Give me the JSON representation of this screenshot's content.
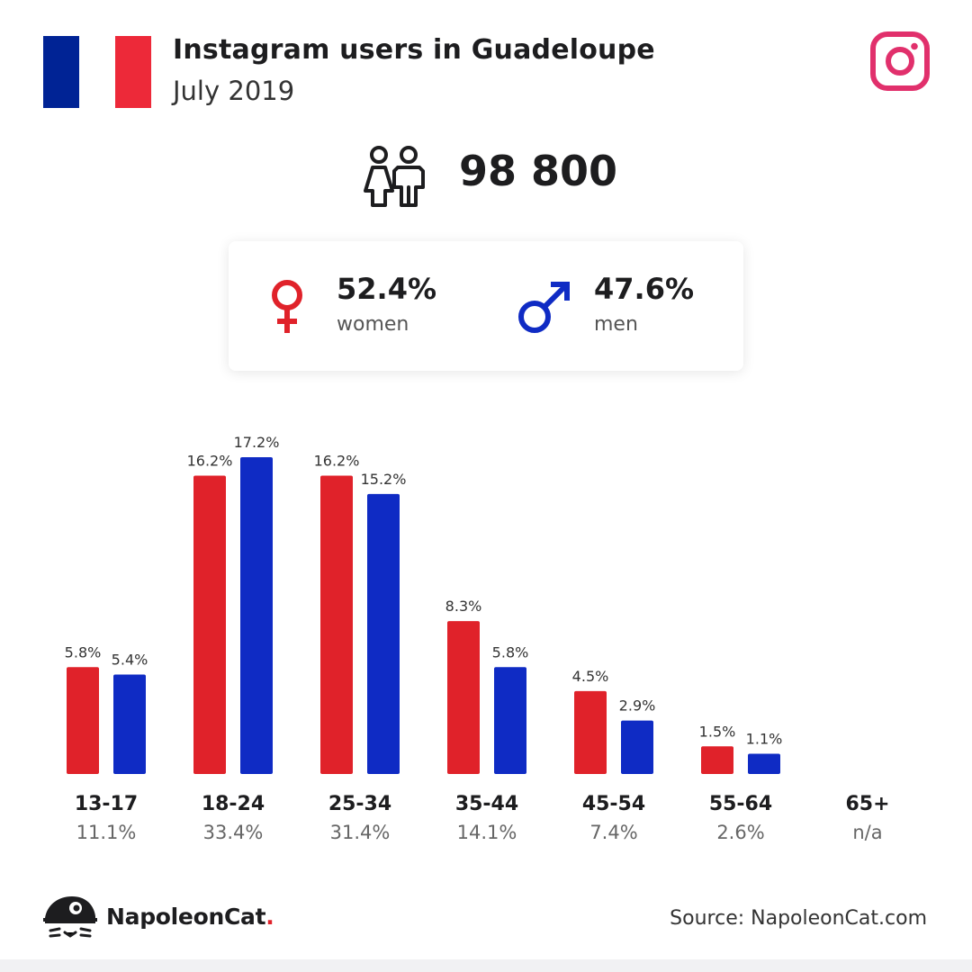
{
  "header": {
    "title": "Instagram users in Guadeloupe",
    "subtitle": "July 2019"
  },
  "colors": {
    "flag_blue": "#002395",
    "flag_red": "#ED2939",
    "women": "#e0222a",
    "men": "#0f2bc4",
    "instagram": "#e1306c"
  },
  "icons": {
    "flag": "france-flag-icon",
    "brand": "instagram-icon",
    "users": "users-icon",
    "women": "female-symbol-icon",
    "men": "male-symbol-icon",
    "logo": "napoleoncat-logo-icon"
  },
  "summary": {
    "total_users": "98 800",
    "women_percent": "52.4%",
    "women_label": "women",
    "men_percent": "47.6%",
    "men_label": "men"
  },
  "chart_data": {
    "type": "bar",
    "categories": [
      "13-17",
      "18-24",
      "25-34",
      "35-44",
      "45-54",
      "55-64",
      "65+"
    ],
    "group_totals": [
      "11.1%",
      "33.4%",
      "31.4%",
      "14.1%",
      "7.4%",
      "2.6%",
      "n/a"
    ],
    "series": [
      {
        "values": [
          5.8,
          16.2,
          16.2,
          8.3,
          4.5,
          1.5,
          null
        ],
        "labels": [
          "5.8%",
          "16.2%",
          "16.2%",
          "8.3%",
          "4.5%",
          "1.5%",
          ""
        ]
      },
      {
        "values": [
          5.4,
          17.2,
          15.2,
          5.8,
          2.9,
          1.1,
          null
        ],
        "labels": [
          "5.4%",
          "17.2%",
          "15.2%",
          "5.8%",
          "2.9%",
          "1.1%",
          ""
        ]
      }
    ],
    "grid": false,
    "ylim": [
      0,
      17.2
    ]
  },
  "footer": {
    "brand": "NapoleonCat",
    "brand_dot": ".",
    "source": "Source: NapoleonCat.com"
  }
}
